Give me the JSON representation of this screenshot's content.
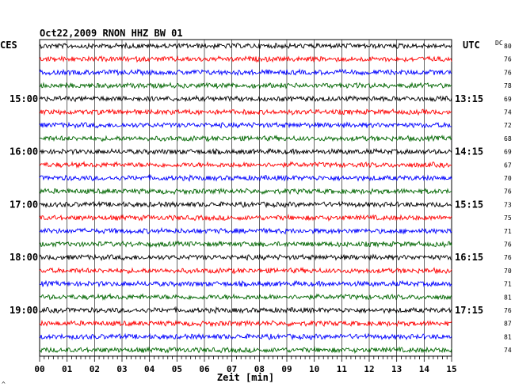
{
  "chart_data": {
    "type": "line",
    "title": "Oct22,2009   RNON HHZ BW 01",
    "left_axis_label": "CES",
    "right_axis_label": "UTC",
    "dc_label": "DC",
    "xlabel": "Zeit [min]",
    "xlim": [
      0,
      15
    ],
    "x_ticks": [
      "00",
      "01",
      "02",
      "03",
      "04",
      "05",
      "06",
      "07",
      "08",
      "09",
      "10",
      "11",
      "12",
      "13",
      "14",
      "15"
    ],
    "grid": "vertical",
    "trace_colors": [
      "#000000",
      "#ff0000",
      "#0000ff",
      "#006600"
    ],
    "left_hour_labels": [
      {
        "row": 4,
        "text": "15:00"
      },
      {
        "row": 8,
        "text": "16:00"
      },
      {
        "row": 12,
        "text": "17:00"
      },
      {
        "row": 16,
        "text": "18:00"
      },
      {
        "row": 20,
        "text": "19:00"
      }
    ],
    "right_hour_labels": [
      {
        "row": 4,
        "text": "13:15"
      },
      {
        "row": 8,
        "text": "14:15"
      },
      {
        "row": 12,
        "text": "15:15"
      },
      {
        "row": 16,
        "text": "16:15"
      },
      {
        "row": 20,
        "text": "17:15"
      }
    ],
    "dc_values": [
      80,
      76,
      76,
      78,
      69,
      74,
      72,
      68,
      69,
      67,
      70,
      76,
      73,
      75,
      71,
      76,
      76,
      70,
      71,
      81,
      76,
      87,
      81,
      74
    ],
    "corner_mark": "^"
  }
}
